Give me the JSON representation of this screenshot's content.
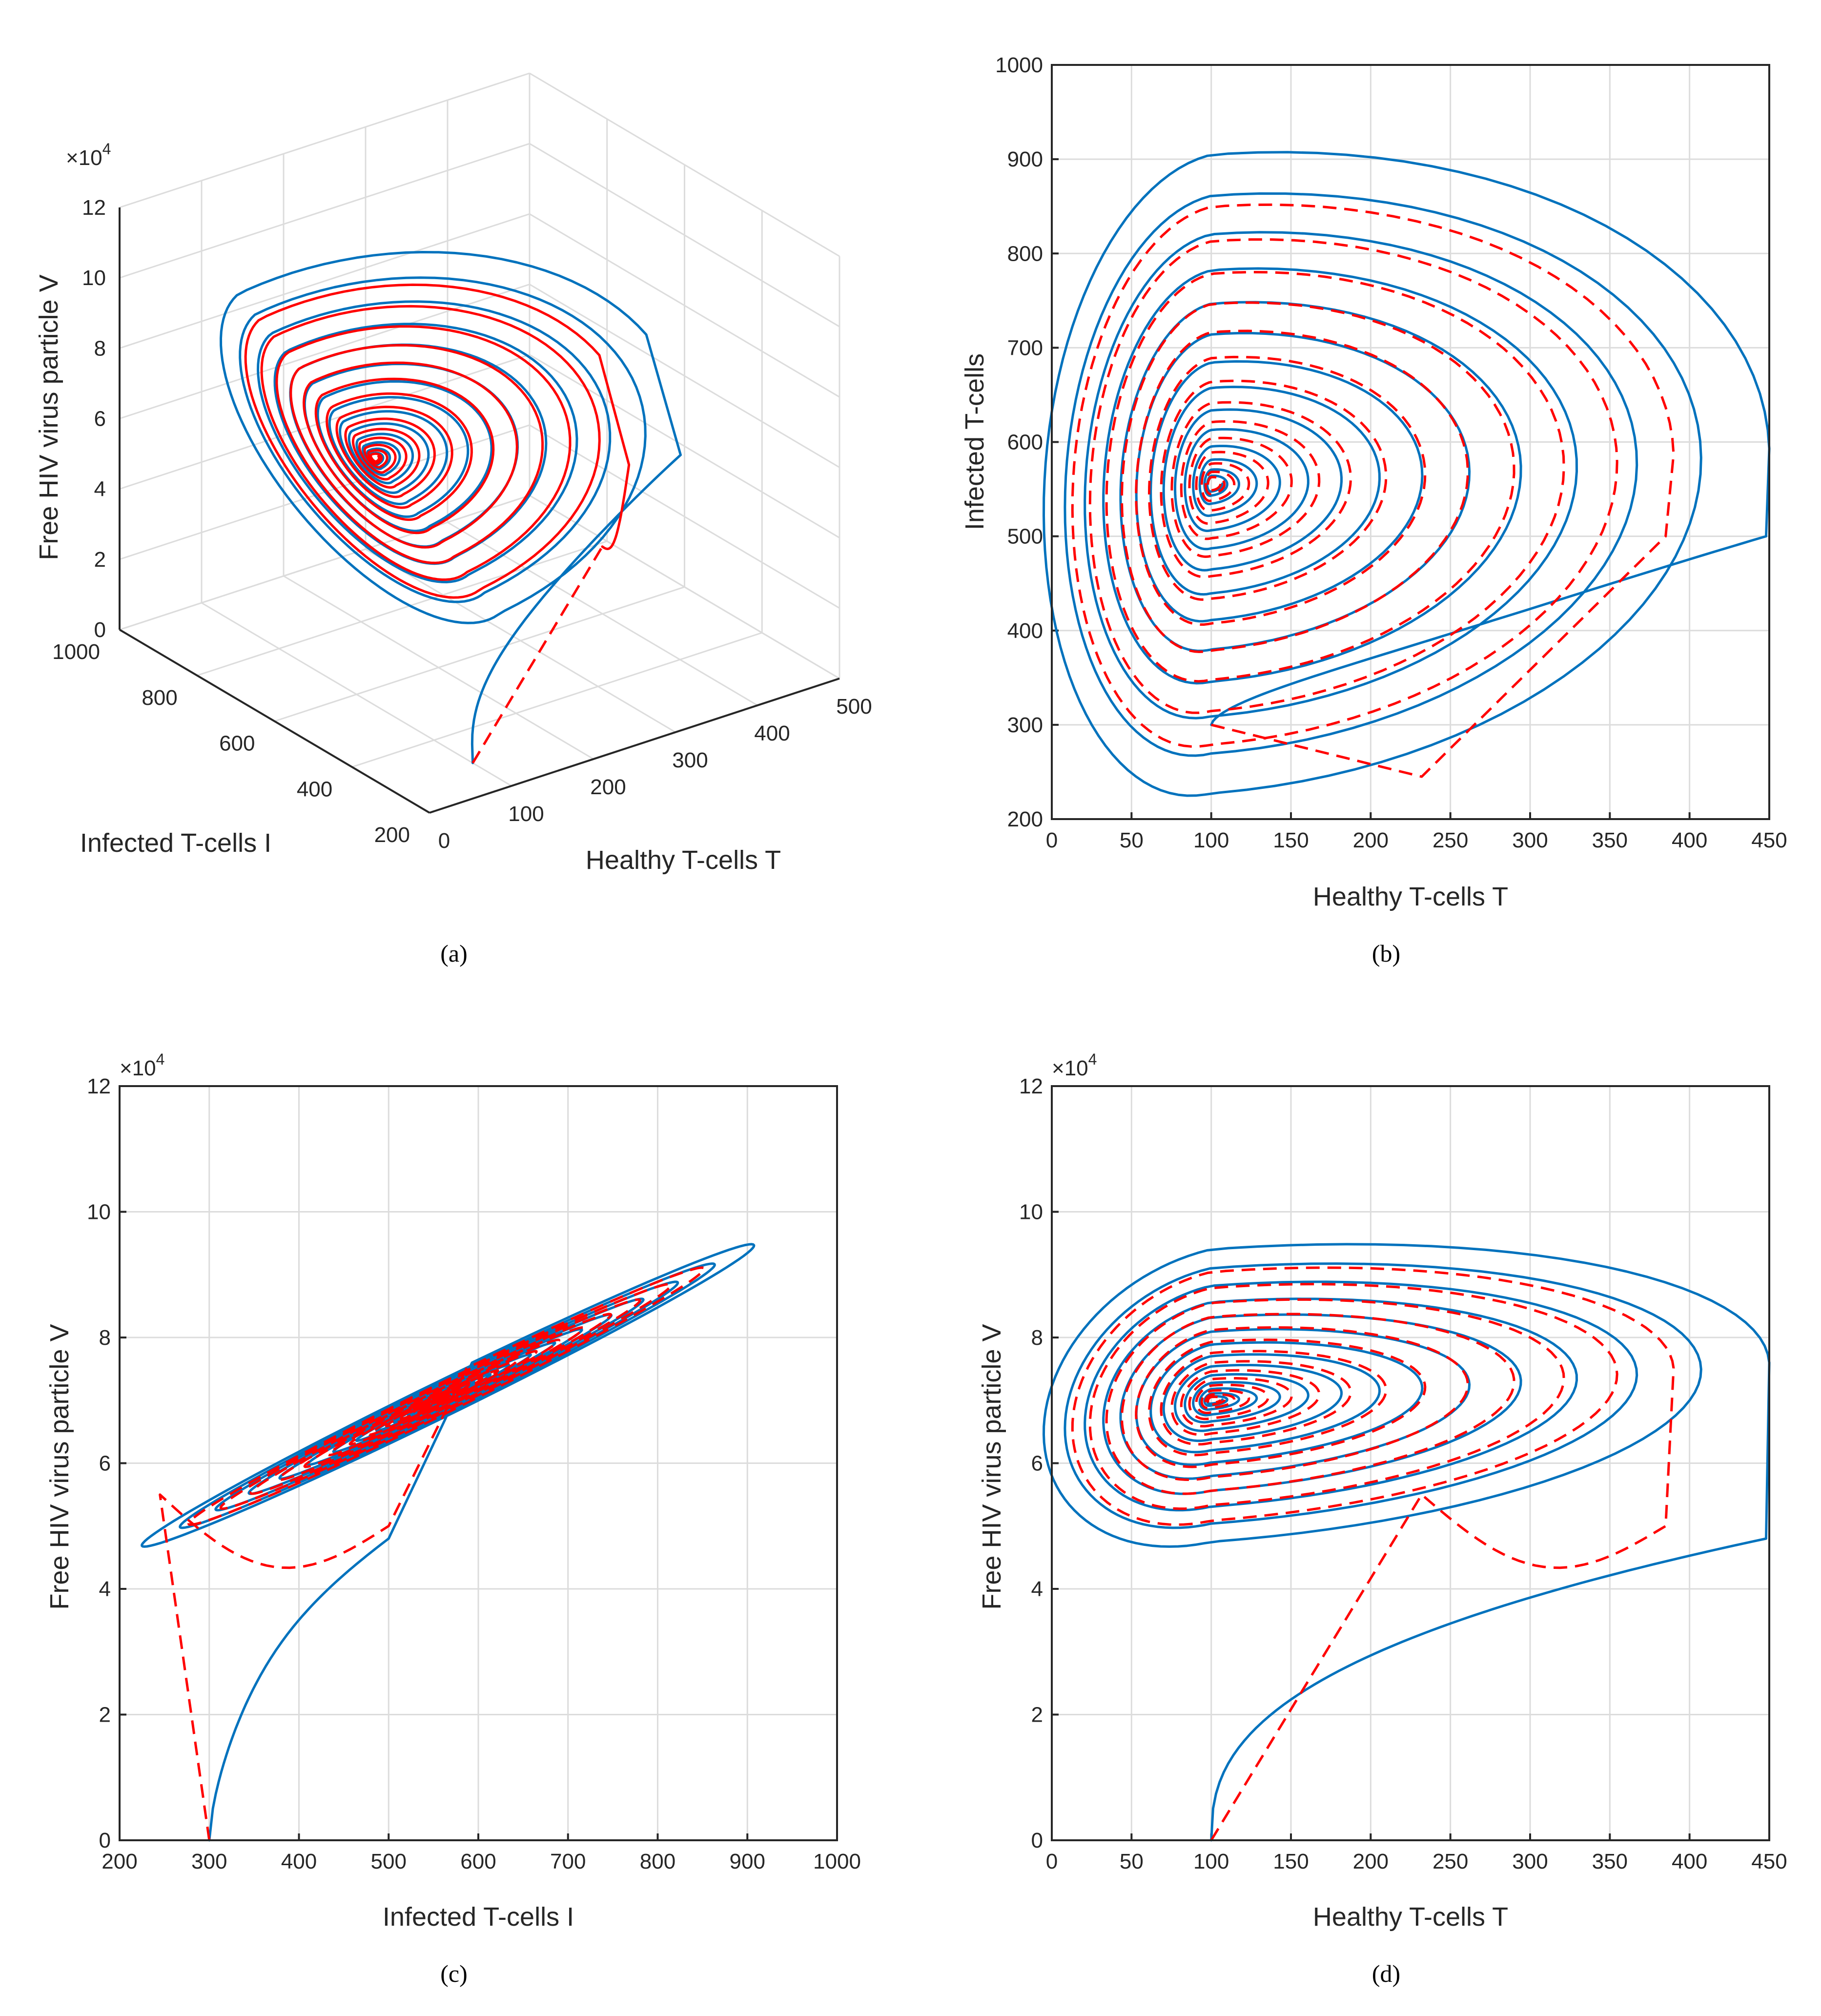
{
  "colors": {
    "solid_series": "#0072bd",
    "dashed_series": "#ff0000",
    "grid": "#dcdcdc",
    "axes": "#262626"
  },
  "captions": {
    "a": "(a)",
    "b": "(b)",
    "c": "(c)",
    "d": "(d)"
  },
  "chart_data": [
    {
      "id": "a",
      "type": "line",
      "projection": "3d",
      "xlabel": "Healthy T-cells T",
      "ylabel": "Infected T-cells I",
      "zlabel": "Free HIV virus particle V",
      "z_exponent": "×10",
      "z_exponent_power": "4",
      "xlim": [
        0,
        500
      ],
      "ylim": [
        200,
        1000
      ],
      "zlim": [
        0,
        12
      ],
      "xticks": [
        "0",
        "100",
        "200",
        "300",
        "400",
        "500"
      ],
      "yticks": [
        "200",
        "400",
        "600",
        "800",
        "1000"
      ],
      "zticks": [
        "0",
        "2",
        "4",
        "6",
        "8",
        "10",
        "12"
      ],
      "grid": true,
      "series": [
        {
          "style": "solid",
          "color": "#0072bd",
          "start": [
            100,
            300,
            0
          ],
          "center": [
            100,
            555,
            7.0
          ],
          "rT": 350,
          "rI": 380,
          "rV": 4.0,
          "turns": 14
        },
        {
          "style": "dashed",
          "color": "#ff0000",
          "start": [
            100,
            300,
            0
          ],
          "corner": [
            230,
            245,
            5.5
          ],
          "center": [
            100,
            555,
            7.0
          ],
          "rT": 290,
          "rI": 320,
          "rV": 3.4,
          "turns": 14
        }
      ]
    },
    {
      "id": "b",
      "type": "line",
      "xlabel": "Healthy T-cells T",
      "ylabel": "Infected T-cells",
      "xlim": [
        0,
        450
      ],
      "ylim": [
        200,
        1000
      ],
      "xticks": [
        "0",
        "50",
        "100",
        "150",
        "200",
        "250",
        "300",
        "350",
        "400",
        "450"
      ],
      "yticks": [
        "200",
        "300",
        "400",
        "500",
        "600",
        "700",
        "800",
        "900",
        "1000"
      ],
      "grid": true,
      "series": [
        {
          "style": "solid",
          "color": "#0072bd",
          "start": [
            100,
            300
          ],
          "center": [
            100,
            555
          ],
          "rT": 350,
          "rI": 380,
          "turns": 14
        },
        {
          "style": "dashed",
          "color": "#ff0000",
          "start": [
            100,
            300
          ],
          "corner": [
            230,
            245
          ],
          "center": [
            100,
            555
          ],
          "rT": 290,
          "rI": 320,
          "turns": 14
        }
      ]
    },
    {
      "id": "c",
      "type": "line",
      "xlabel": "Infected T-cells I",
      "ylabel": "Free HIV virus particle V",
      "y_exponent": "×10",
      "y_exponent_power": "4",
      "xlim": [
        200,
        1000
      ],
      "ylim": [
        0,
        12
      ],
      "xticks": [
        "200",
        "300",
        "400",
        "500",
        "600",
        "700",
        "800",
        "900",
        "1000"
      ],
      "yticks": [
        "0",
        "2",
        "4",
        "6",
        "8",
        "10",
        "12"
      ],
      "grid": true,
      "series": [
        {
          "style": "solid",
          "color": "#0072bd",
          "start": [
            300,
            0
          ],
          "center": [
            555,
            7.0
          ],
          "rI": 380,
          "rV": 4.0,
          "turns": 14
        },
        {
          "style": "dashed",
          "color": "#ff0000",
          "start": [
            300,
            0
          ],
          "corner": [
            245,
            5.5
          ],
          "center": [
            555,
            7.0
          ],
          "rI": 320,
          "rV": 3.4,
          "turns": 14
        }
      ]
    },
    {
      "id": "d",
      "type": "line",
      "xlabel": "Healthy T-cells T",
      "ylabel": "Free HIV virus particle V",
      "y_exponent": "×10",
      "y_exponent_power": "4",
      "xlim": [
        0,
        450
      ],
      "ylim": [
        0,
        12
      ],
      "xticks": [
        "0",
        "50",
        "100",
        "150",
        "200",
        "250",
        "300",
        "350",
        "400",
        "450"
      ],
      "yticks": [
        "0",
        "2",
        "4",
        "6",
        "8",
        "10",
        "12"
      ],
      "grid": true,
      "series": [
        {
          "style": "solid",
          "color": "#0072bd",
          "start": [
            100,
            0
          ],
          "center": [
            100,
            7.0
          ],
          "rT": 350,
          "rV": 4.0,
          "turns": 14
        },
        {
          "style": "dashed",
          "color": "#ff0000",
          "start": [
            100,
            0
          ],
          "corner": [
            230,
            5.5
          ],
          "center": [
            100,
            7.0
          ],
          "rT": 290,
          "rV": 3.4,
          "turns": 14
        }
      ]
    }
  ]
}
